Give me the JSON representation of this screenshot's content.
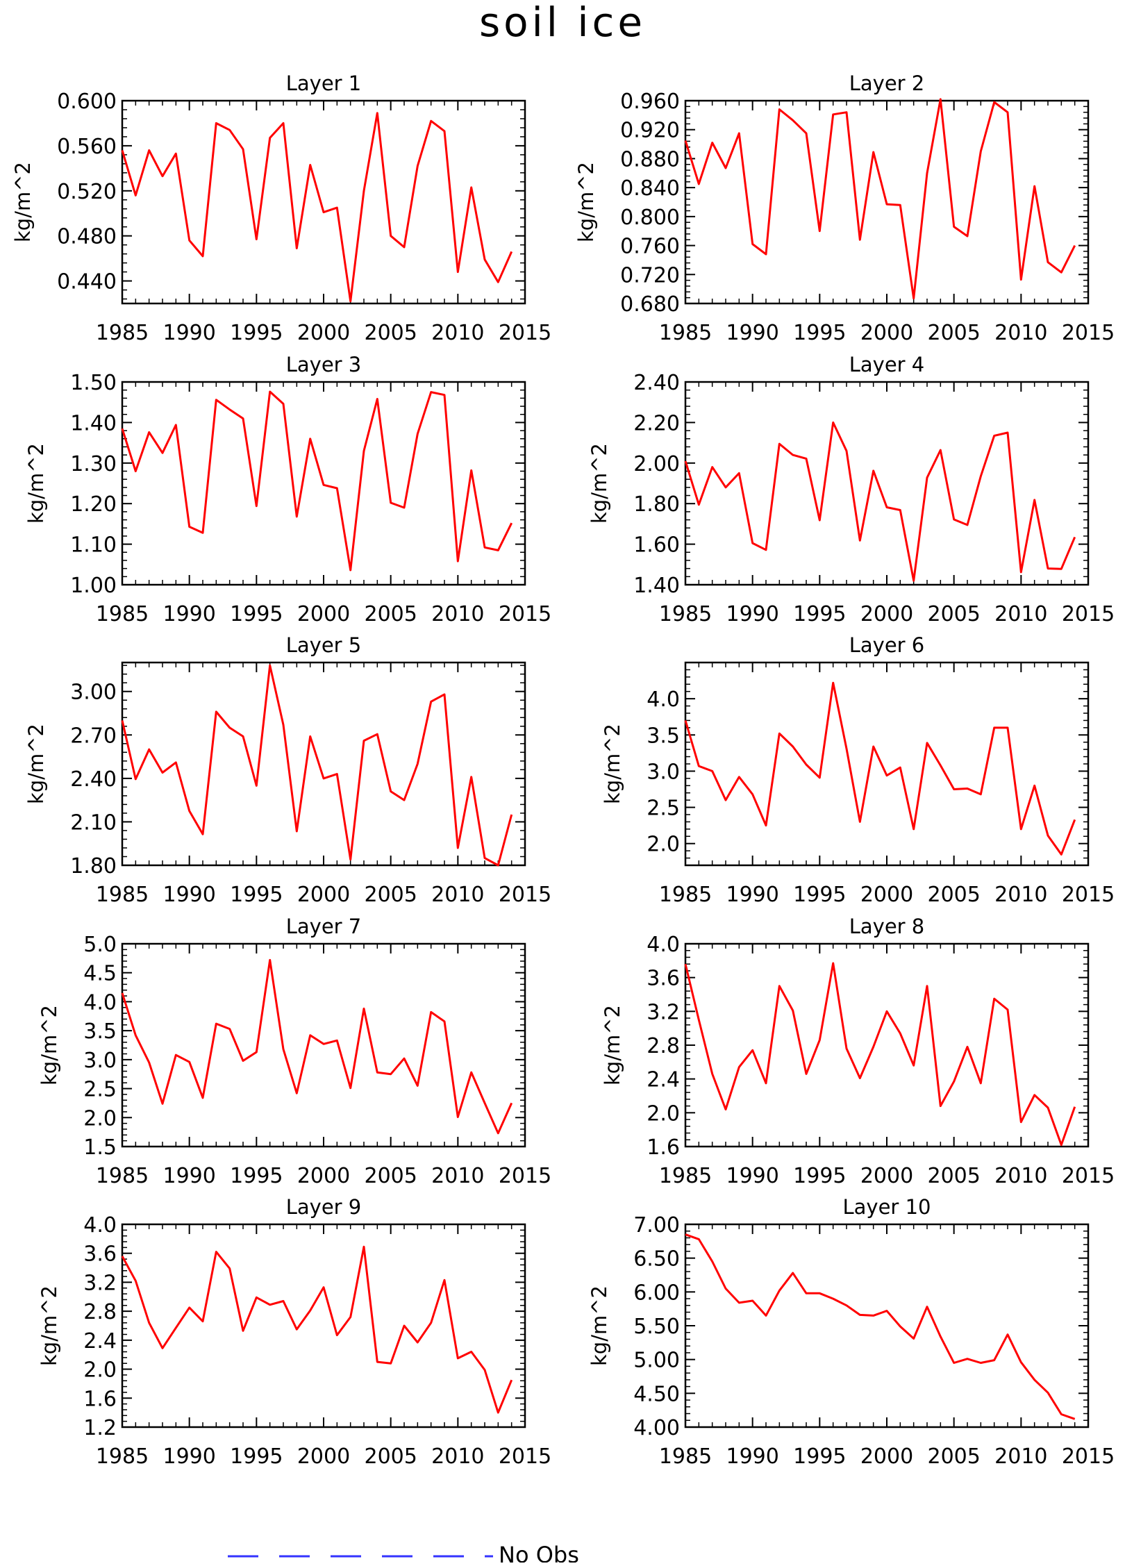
{
  "figure": {
    "title": "soil ice",
    "legend": [
      {
        "label": "No Obs",
        "color": "#3333ff",
        "style": "dashed"
      }
    ]
  },
  "chart_data": [
    {
      "type": "line",
      "title": "Layer 1",
      "xlabel": "",
      "ylabel": "kg/m^2",
      "xlim": [
        1985,
        2015
      ],
      "ylim": [
        0.42,
        0.6
      ],
      "xticks": [
        "1985",
        "1990",
        "1995",
        "2000",
        "2005",
        "2010",
        "2015"
      ],
      "yticks": [
        "0.600",
        "0.560",
        "0.520",
        "0.480",
        "0.440"
      ],
      "ytick_values": [
        0.6,
        0.56,
        0.52,
        0.48,
        0.44
      ],
      "grid": false,
      "color": "#ff0000",
      "x": [
        1985,
        1986,
        1987,
        1988,
        1989,
        1990,
        1991,
        1992,
        1993,
        1994,
        1995,
        1996,
        1997,
        1998,
        1999,
        2000,
        2001,
        2002,
        2003,
        2004,
        2005,
        2006,
        2007,
        2008,
        2009,
        2010,
        2011,
        2012,
        2013,
        2014
      ],
      "series": [
        {
          "values": [
            0.556,
            0.516,
            0.556,
            0.533,
            0.553,
            0.476,
            0.462,
            0.58,
            0.574,
            0.557,
            0.477,
            0.567,
            0.58,
            0.469,
            0.543,
            0.501,
            0.505,
            0.422,
            0.52,
            0.589,
            0.48,
            0.47,
            0.542,
            0.582,
            0.573,
            0.448,
            0.523,
            0.459,
            0.439,
            0.466
          ]
        }
      ]
    },
    {
      "type": "line",
      "title": "Layer 2",
      "xlabel": "",
      "ylabel": "kg/m^2",
      "xlim": [
        1985,
        2015
      ],
      "ylim": [
        0.68,
        0.96
      ],
      "xticks": [
        "1985",
        "1990",
        "1995",
        "2000",
        "2005",
        "2010",
        "2015"
      ],
      "yticks": [
        "0.960",
        "0.920",
        "0.880",
        "0.840",
        "0.800",
        "0.760",
        "0.720",
        "0.680"
      ],
      "ytick_values": [
        0.96,
        0.92,
        0.88,
        0.84,
        0.8,
        0.76,
        0.72,
        0.68
      ],
      "grid": false,
      "color": "#ff0000",
      "x": [
        1985,
        1986,
        1987,
        1988,
        1989,
        1990,
        1991,
        1992,
        1993,
        1994,
        1995,
        1996,
        1997,
        1998,
        1999,
        2000,
        2001,
        2002,
        2003,
        2004,
        2005,
        2006,
        2007,
        2008,
        2009,
        2010,
        2011,
        2012,
        2013,
        2014
      ],
      "series": [
        {
          "values": [
            0.905,
            0.845,
            0.902,
            0.867,
            0.915,
            0.762,
            0.748,
            0.948,
            0.933,
            0.915,
            0.78,
            0.941,
            0.944,
            0.768,
            0.889,
            0.817,
            0.816,
            0.687,
            0.86,
            0.962,
            0.786,
            0.773,
            0.89,
            0.958,
            0.944,
            0.713,
            0.842,
            0.737,
            0.723,
            0.76
          ]
        }
      ]
    },
    {
      "type": "line",
      "title": "Layer 3",
      "xlabel": "",
      "ylabel": "kg/m^2",
      "xlim": [
        1985,
        2015
      ],
      "ylim": [
        1.0,
        1.5
      ],
      "xticks": [
        "1985",
        "1990",
        "1995",
        "2000",
        "2005",
        "2010",
        "2015"
      ],
      "yticks": [
        "1.50",
        "1.40",
        "1.30",
        "1.20",
        "1.10",
        "1.00"
      ],
      "ytick_values": [
        1.5,
        1.4,
        1.3,
        1.2,
        1.1,
        1.0
      ],
      "grid": false,
      "color": "#ff0000",
      "x": [
        1985,
        1986,
        1987,
        1988,
        1989,
        1990,
        1991,
        1992,
        1993,
        1994,
        1995,
        1996,
        1997,
        1998,
        1999,
        2000,
        2001,
        2002,
        2003,
        2004,
        2005,
        2006,
        2007,
        2008,
        2009,
        2010,
        2011,
        2012,
        2013,
        2014
      ],
      "series": [
        {
          "values": [
            1.385,
            1.28,
            1.376,
            1.325,
            1.394,
            1.143,
            1.128,
            1.456,
            1.432,
            1.41,
            1.194,
            1.476,
            1.446,
            1.168,
            1.36,
            1.246,
            1.238,
            1.036,
            1.33,
            1.458,
            1.202,
            1.19,
            1.372,
            1.475,
            1.468,
            1.058,
            1.282,
            1.092,
            1.085,
            1.152
          ]
        }
      ]
    },
    {
      "type": "line",
      "title": "Layer 4",
      "xlabel": "",
      "ylabel": "kg/m^2",
      "xlim": [
        1985,
        2015
      ],
      "ylim": [
        1.4,
        2.4
      ],
      "xticks": [
        "1985",
        "1990",
        "1995",
        "2000",
        "2005",
        "2010",
        "2015"
      ],
      "yticks": [
        "2.40",
        "2.20",
        "2.00",
        "1.80",
        "1.60",
        "1.40"
      ],
      "ytick_values": [
        2.4,
        2.2,
        2.0,
        1.8,
        1.6,
        1.4
      ],
      "grid": false,
      "color": "#ff0000",
      "x": [
        1985,
        1986,
        1987,
        1988,
        1989,
        1990,
        1991,
        1992,
        1993,
        1994,
        1995,
        1996,
        1997,
        1998,
        1999,
        2000,
        2001,
        2002,
        2003,
        2004,
        2005,
        2006,
        2007,
        2008,
        2009,
        2010,
        2011,
        2012,
        2013,
        2014
      ],
      "series": [
        {
          "values": [
            2.01,
            1.795,
            1.98,
            1.88,
            1.95,
            1.605,
            1.572,
            2.095,
            2.04,
            2.022,
            1.718,
            2.2,
            2.06,
            1.618,
            1.962,
            1.782,
            1.768,
            1.42,
            1.928,
            2.064,
            1.722,
            1.695,
            1.935,
            2.135,
            2.15,
            1.462,
            1.818,
            1.48,
            1.478,
            1.635
          ]
        }
      ]
    },
    {
      "type": "line",
      "title": "Layer 5",
      "xlabel": "",
      "ylabel": "kg/m^2",
      "xlim": [
        1985,
        2015
      ],
      "ylim": [
        1.8,
        3.2
      ],
      "xticks": [
        "1985",
        "1990",
        "1995",
        "2000",
        "2005",
        "2010",
        "2015"
      ],
      "yticks": [
        "3.00",
        "2.70",
        "2.40",
        "2.10",
        "1.80"
      ],
      "ytick_values": [
        3.0,
        2.7,
        2.4,
        2.1,
        1.8
      ],
      "grid": false,
      "color": "#ff0000",
      "x": [
        1985,
        1986,
        1987,
        1988,
        1989,
        1990,
        1991,
        1992,
        1993,
        1994,
        1995,
        1996,
        1997,
        1998,
        1999,
        2000,
        2001,
        2002,
        2003,
        2004,
        2005,
        2006,
        2007,
        2008,
        2009,
        2010,
        2011,
        2012,
        2013,
        2014
      ],
      "series": [
        {
          "values": [
            2.8,
            2.395,
            2.6,
            2.44,
            2.51,
            2.175,
            2.015,
            2.86,
            2.75,
            2.69,
            2.35,
            3.18,
            2.77,
            2.035,
            2.69,
            2.4,
            2.43,
            1.84,
            2.66,
            2.705,
            2.31,
            2.25,
            2.5,
            2.93,
            2.98,
            1.92,
            2.41,
            1.85,
            1.8,
            2.15
          ]
        }
      ]
    },
    {
      "type": "line",
      "title": "Layer 6",
      "xlabel": "",
      "ylabel": "kg/m^2",
      "xlim": [
        1985,
        2015
      ],
      "ylim": [
        1.7,
        4.5
      ],
      "xticks": [
        "1985",
        "1990",
        "1995",
        "2000",
        "2005",
        "2010",
        "2015"
      ],
      "yticks": [
        "4.0",
        "3.5",
        "3.0",
        "2.5",
        "2.0"
      ],
      "ytick_values": [
        4.0,
        3.5,
        3.0,
        2.5,
        2.0
      ],
      "grid": false,
      "color": "#ff0000",
      "x": [
        1985,
        1986,
        1987,
        1988,
        1989,
        1990,
        1991,
        1992,
        1993,
        1994,
        1995,
        1996,
        1997,
        1998,
        1999,
        2000,
        2001,
        2002,
        2003,
        2004,
        2005,
        2006,
        2007,
        2008,
        2009,
        2010,
        2011,
        2012,
        2013,
        2014
      ],
      "series": [
        {
          "values": [
            3.7,
            3.07,
            3.0,
            2.6,
            2.92,
            2.68,
            2.25,
            3.52,
            3.34,
            3.09,
            2.91,
            4.22,
            3.31,
            2.3,
            3.34,
            2.94,
            3.05,
            2.2,
            3.39,
            3.08,
            2.75,
            2.76,
            2.68,
            3.6,
            3.6,
            2.2,
            2.8,
            2.11,
            1.85,
            2.33
          ]
        }
      ]
    },
    {
      "type": "line",
      "title": "Layer 7",
      "xlabel": "",
      "ylabel": "kg/m^2",
      "xlim": [
        1985,
        2015
      ],
      "ylim": [
        1.5,
        5.0
      ],
      "xticks": [
        "1985",
        "1990",
        "1995",
        "2000",
        "2005",
        "2010",
        "2015"
      ],
      "yticks": [
        "5.0",
        "4.5",
        "4.0",
        "3.5",
        "3.0",
        "2.5",
        "2.0",
        "1.5"
      ],
      "ytick_values": [
        5.0,
        4.5,
        4.0,
        3.5,
        3.0,
        2.5,
        2.0,
        1.5
      ],
      "grid": false,
      "color": "#ff0000",
      "x": [
        1985,
        1986,
        1987,
        1988,
        1989,
        1990,
        1991,
        1992,
        1993,
        1994,
        1995,
        1996,
        1997,
        1998,
        1999,
        2000,
        2001,
        2002,
        2003,
        2004,
        2005,
        2006,
        2007,
        2008,
        2009,
        2010,
        2011,
        2012,
        2013,
        2014
      ],
      "series": [
        {
          "values": [
            4.15,
            3.42,
            2.95,
            2.24,
            3.08,
            2.96,
            2.34,
            3.62,
            3.53,
            2.98,
            3.13,
            4.72,
            3.18,
            2.42,
            3.42,
            3.27,
            3.33,
            2.51,
            3.88,
            2.78,
            2.75,
            3.02,
            2.55,
            3.82,
            3.66,
            2.01,
            2.78,
            2.25,
            1.73,
            2.25
          ]
        }
      ]
    },
    {
      "type": "line",
      "title": "Layer 8",
      "xlabel": "",
      "ylabel": "kg/m^2",
      "xlim": [
        1985,
        2015
      ],
      "ylim": [
        1.6,
        4.0
      ],
      "xticks": [
        "1985",
        "1990",
        "1995",
        "2000",
        "2005",
        "2010",
        "2015"
      ],
      "yticks": [
        "4.0",
        "3.6",
        "3.2",
        "2.8",
        "2.4",
        "2.0",
        "1.6"
      ],
      "ytick_values": [
        4.0,
        3.6,
        3.2,
        2.8,
        2.4,
        2.0,
        1.6
      ],
      "grid": false,
      "color": "#ff0000",
      "x": [
        1985,
        1986,
        1987,
        1988,
        1989,
        1990,
        1991,
        1992,
        1993,
        1994,
        1995,
        1996,
        1997,
        1998,
        1999,
        2000,
        2001,
        2002,
        2003,
        2004,
        2005,
        2006,
        2007,
        2008,
        2009,
        2010,
        2011,
        2012,
        2013,
        2014
      ],
      "series": [
        {
          "values": [
            3.76,
            3.1,
            2.46,
            2.04,
            2.54,
            2.74,
            2.35,
            3.5,
            3.21,
            2.46,
            2.86,
            3.77,
            2.76,
            2.41,
            2.78,
            3.2,
            2.94,
            2.56,
            3.5,
            2.08,
            2.37,
            2.78,
            2.35,
            3.35,
            3.22,
            1.89,
            2.21,
            2.06,
            1.62,
            2.07
          ]
        }
      ]
    },
    {
      "type": "line",
      "title": "Layer 9",
      "xlabel": "",
      "ylabel": "kg/m^2",
      "xlim": [
        1985,
        2015
      ],
      "ylim": [
        1.2,
        4.0
      ],
      "xticks": [
        "1985",
        "1990",
        "1995",
        "2000",
        "2005",
        "2010",
        "2015"
      ],
      "yticks": [
        "4.0",
        "3.6",
        "3.2",
        "2.8",
        "2.4",
        "2.0",
        "1.6",
        "1.2"
      ],
      "ytick_values": [
        4.0,
        3.6,
        3.2,
        2.8,
        2.4,
        2.0,
        1.6,
        1.2
      ],
      "grid": false,
      "color": "#ff0000",
      "x": [
        1985,
        1986,
        1987,
        1988,
        1989,
        1990,
        1991,
        1992,
        1993,
        1994,
        1995,
        1996,
        1997,
        1998,
        1999,
        2000,
        2001,
        2002,
        2003,
        2004,
        2005,
        2006,
        2007,
        2008,
        2009,
        2010,
        2011,
        2012,
        2013,
        2014
      ],
      "series": [
        {
          "values": [
            3.56,
            3.22,
            2.64,
            2.29,
            2.57,
            2.85,
            2.66,
            3.62,
            3.39,
            2.53,
            2.99,
            2.89,
            2.94,
            2.55,
            2.81,
            3.13,
            2.47,
            2.72,
            3.69,
            2.1,
            2.08,
            2.6,
            2.37,
            2.64,
            3.23,
            2.15,
            2.24,
            1.99,
            1.4,
            1.85
          ]
        }
      ]
    },
    {
      "type": "line",
      "title": "Layer 10",
      "xlabel": "",
      "ylabel": "kg/m^2",
      "xlim": [
        1985,
        2015
      ],
      "ylim": [
        4.0,
        7.0
      ],
      "xticks": [
        "1985",
        "1990",
        "1995",
        "2000",
        "2005",
        "2010",
        "2015"
      ],
      "yticks": [
        "7.00",
        "6.50",
        "6.00",
        "5.50",
        "5.00",
        "4.50",
        "4.00"
      ],
      "ytick_values": [
        7.0,
        6.5,
        6.0,
        5.5,
        5.0,
        4.5,
        4.0
      ],
      "grid": false,
      "color": "#ff0000",
      "x": [
        1985,
        1986,
        1987,
        1988,
        1989,
        1990,
        1991,
        1992,
        1993,
        1994,
        1995,
        1996,
        1997,
        1998,
        1999,
        2000,
        2001,
        2002,
        2003,
        2004,
        2005,
        2006,
        2007,
        2008,
        2009,
        2010,
        2011,
        2012,
        2013,
        2014
      ],
      "series": [
        {
          "values": [
            6.85,
            6.78,
            6.45,
            6.05,
            5.84,
            5.87,
            5.65,
            6.02,
            6.28,
            5.98,
            5.98,
            5.9,
            5.8,
            5.66,
            5.65,
            5.72,
            5.49,
            5.31,
            5.78,
            5.34,
            4.95,
            5.01,
            4.95,
            4.99,
            5.37,
            4.96,
            4.7,
            4.51,
            4.19,
            4.12
          ]
        }
      ]
    }
  ]
}
